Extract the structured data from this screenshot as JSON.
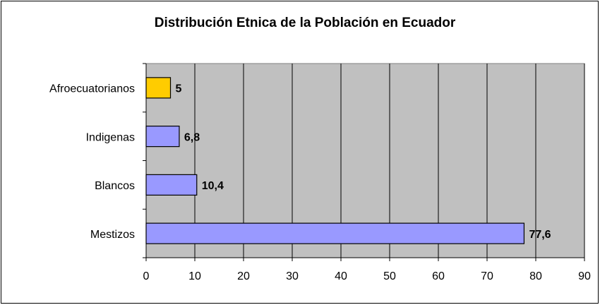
{
  "chart_data": {
    "type": "hbar",
    "title": "Distribución Etnica de la Población en Ecuador",
    "categories": [
      "Afroecuatorianos",
      "Indigenas",
      "Blancos",
      "Mestizos"
    ],
    "values": [
      5,
      6.8,
      10.4,
      77.6
    ],
    "value_labels": [
      "5",
      "6,8",
      "10,4",
      "77,6"
    ],
    "colors": [
      "#ffcc00",
      "#9999ff",
      "#9999ff",
      "#9999ff"
    ],
    "xlim": [
      0,
      90
    ],
    "xticks": [
      0,
      10,
      20,
      30,
      40,
      50,
      60,
      70,
      80,
      90
    ],
    "grid": true
  }
}
